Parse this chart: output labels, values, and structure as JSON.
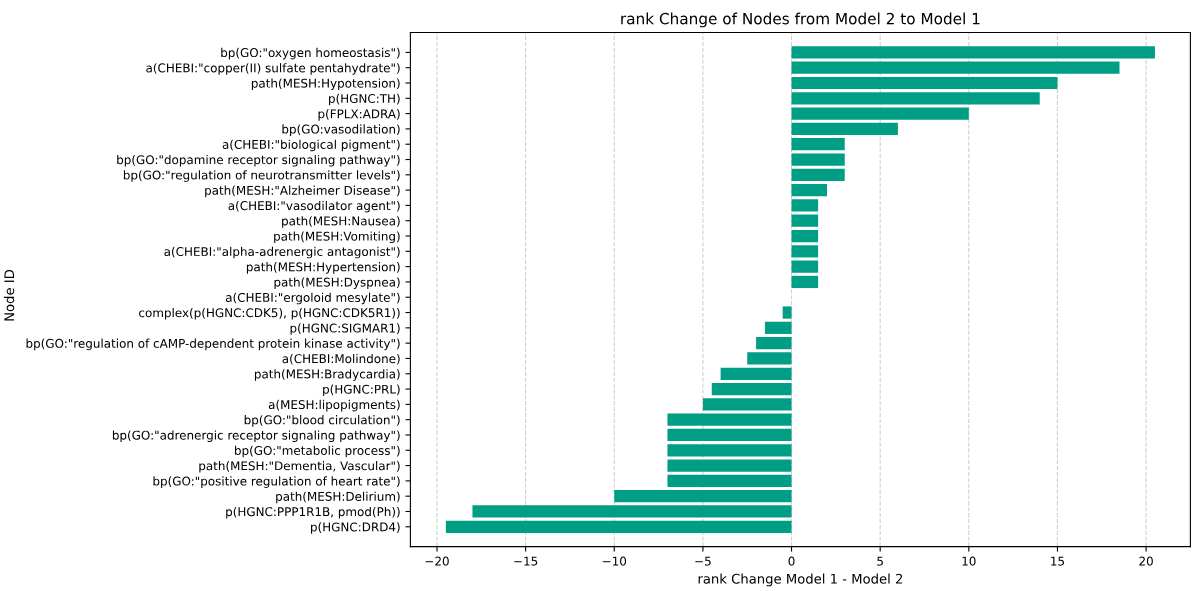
{
  "chart_data": {
    "type": "bar",
    "orientation": "horizontal",
    "title": "rank Change of Nodes from Model 2 to Model 1",
    "xlabel": "rank Change Model 1 - Model 2",
    "ylabel": "Node ID",
    "categories": [
      "bp(GO:\"oxygen homeostasis\")",
      "a(CHEBI:\"copper(II) sulfate pentahydrate\")",
      "path(MESH:Hypotension)",
      "p(HGNC:TH)",
      "p(FPLX:ADRA)",
      "bp(GO:vasodilation)",
      "a(CHEBI:\"biological pigment\")",
      "bp(GO:\"dopamine receptor signaling pathway\")",
      "bp(GO:\"regulation of neurotransmitter levels\")",
      "path(MESH:\"Alzheimer Disease\")",
      "a(CHEBI:\"vasodilator agent\")",
      "path(MESH:Nausea)",
      "path(MESH:Vomiting)",
      "a(CHEBI:\"alpha-adrenergic antagonist\")",
      "path(MESH:Hypertension)",
      "path(MESH:Dyspnea)",
      "a(CHEBI:\"ergoloid mesylate\")",
      "complex(p(HGNC:CDK5), p(HGNC:CDK5R1))",
      "p(HGNC:SIGMAR1)",
      "bp(GO:\"regulation of cAMP-dependent protein kinase activity\")",
      "a(CHEBI:Molindone)",
      "path(MESH:Bradycardia)",
      "p(HGNC:PRL)",
      "a(MESH:lipopigments)",
      "bp(GO:\"blood circulation\")",
      "bp(GO:\"adrenergic receptor signaling pathway\")",
      "bp(GO:\"metabolic process\")",
      "path(MESH:\"Dementia, Vascular\")",
      "bp(GO:\"positive regulation of heart rate\")",
      "path(MESH:Delirium)",
      "p(HGNC:PPP1R1B, pmod(Ph))",
      "p(HGNC:DRD4)"
    ],
    "values": [
      20.5,
      18.5,
      15,
      14,
      10,
      6,
      3,
      3,
      3,
      2,
      1.5,
      1.5,
      1.5,
      1.5,
      1.5,
      1.5,
      0,
      -0.5,
      -1.5,
      -2,
      -2.5,
      -4,
      -4.5,
      -5,
      -7,
      -7,
      -7,
      -7,
      -7,
      -10,
      -18,
      -19.5
    ],
    "color": "#009e84",
    "xlim": [
      -21.5,
      22.5
    ],
    "xticks": [
      {
        "value": -20,
        "label": "−20"
      },
      {
        "value": -15,
        "label": "−15"
      },
      {
        "value": -10,
        "label": "−10"
      },
      {
        "value": -5,
        "label": "−5"
      },
      0,
      5,
      10,
      15,
      20
    ],
    "grid": "x"
  }
}
